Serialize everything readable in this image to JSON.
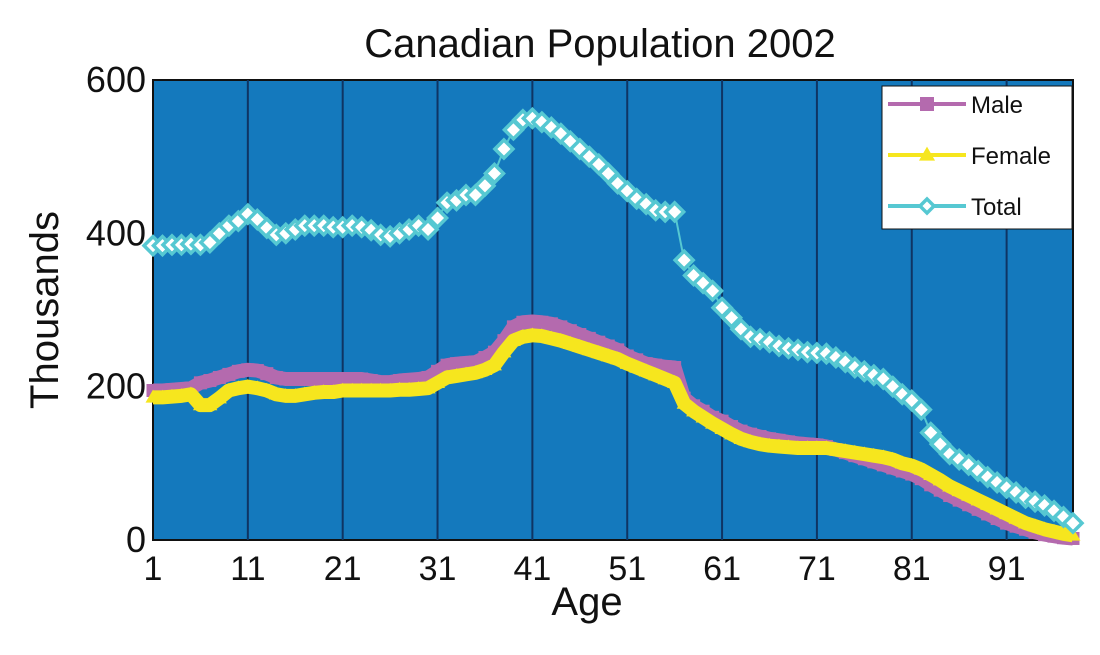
{
  "chart_data": {
    "type": "line",
    "title": "Canadian Population 2002",
    "xlabel": "Age",
    "ylabel": "Thousands",
    "xlim": [
      1,
      98
    ],
    "ylim": [
      0,
      600
    ],
    "xticks": [
      1,
      11,
      21,
      31,
      41,
      51,
      61,
      71,
      81,
      91
    ],
    "yticks": [
      0,
      200,
      400,
      600
    ],
    "grid": "vertical",
    "legend": "top-right",
    "colors": {
      "plot_background": "#1479bd",
      "grid": "#0f3463",
      "male": "#b46aae",
      "female": "#f6e61e",
      "total": "#56c8d2",
      "marker_fill": "#ffffff"
    },
    "x": [
      1,
      2,
      3,
      4,
      5,
      6,
      7,
      8,
      9,
      10,
      11,
      12,
      13,
      14,
      15,
      16,
      17,
      18,
      19,
      20,
      21,
      22,
      23,
      24,
      25,
      26,
      27,
      28,
      29,
      30,
      31,
      32,
      33,
      34,
      35,
      36,
      37,
      38,
      39,
      40,
      41,
      42,
      43,
      44,
      45,
      46,
      47,
      48,
      49,
      50,
      51,
      52,
      53,
      54,
      55,
      56,
      57,
      58,
      59,
      60,
      61,
      62,
      63,
      64,
      65,
      66,
      67,
      68,
      69,
      70,
      71,
      72,
      73,
      74,
      75,
      76,
      77,
      78,
      79,
      80,
      81,
      82,
      83,
      84,
      85,
      86,
      87,
      88,
      89,
      90,
      91,
      92,
      93,
      94,
      95,
      96,
      97,
      98
    ],
    "series": [
      {
        "name": "Male",
        "marker": "square",
        "values": [
          195,
          195,
          196,
          197,
          198,
          205,
          208,
          212,
          216,
          220,
          222,
          221,
          217,
          212,
          210,
          210,
          210,
          210,
          210,
          210,
          210,
          210,
          210,
          208,
          206,
          206,
          208,
          209,
          210,
          212,
          220,
          228,
          230,
          231,
          232,
          238,
          245,
          260,
          278,
          284,
          285,
          284,
          282,
          278,
          273,
          268,
          263,
          258,
          253,
          248,
          240,
          235,
          230,
          228,
          226,
          225,
          185,
          175,
          168,
          160,
          155,
          148,
          142,
          138,
          135,
          132,
          130,
          128,
          126,
          125,
          124,
          122,
          118,
          114,
          110,
          106,
          102,
          98,
          94,
          90,
          86,
          80,
          72,
          65,
          58,
          52,
          46,
          40,
          34,
          28,
          22,
          18,
          14,
          10,
          7,
          5,
          3,
          2
        ]
      },
      {
        "name": "Female",
        "marker": "triangle",
        "values": [
          186,
          186,
          187,
          188,
          190,
          176,
          176,
          185,
          195,
          198,
          200,
          198,
          195,
          190,
          188,
          188,
          190,
          192,
          193,
          193,
          195,
          195,
          195,
          195,
          195,
          195,
          196,
          196,
          197,
          198,
          205,
          212,
          214,
          216,
          218,
          222,
          228,
          245,
          260,
          265,
          267,
          266,
          263,
          260,
          256,
          252,
          248,
          244,
          240,
          236,
          230,
          225,
          220,
          215,
          210,
          205,
          178,
          168,
          160,
          152,
          145,
          138,
          132,
          128,
          125,
          123,
          122,
          121,
          120,
          120,
          120,
          120,
          118,
          116,
          114,
          112,
          110,
          108,
          105,
          100,
          97,
          92,
          85,
          78,
          70,
          64,
          58,
          52,
          46,
          40,
          34,
          28,
          22,
          18,
          14,
          11,
          8,
          6
        ]
      },
      {
        "name": "Total",
        "marker": "diamond",
        "values": [
          384,
          384,
          385,
          385,
          386,
          385,
          388,
          400,
          410,
          416,
          425,
          418,
          407,
          398,
          400,
          405,
          410,
          410,
          410,
          408,
          408,
          410,
          408,
          404,
          398,
          396,
          400,
          405,
          410,
          405,
          420,
          440,
          443,
          450,
          450,
          462,
          478,
          510,
          535,
          548,
          550,
          545,
          538,
          530,
          520,
          510,
          500,
          490,
          478,
          465,
          455,
          445,
          438,
          430,
          428,
          428,
          365,
          345,
          335,
          325,
          303,
          290,
          275,
          265,
          262,
          258,
          253,
          250,
          248,
          245,
          244,
          243,
          238,
          232,
          225,
          220,
          215,
          210,
          200,
          190,
          182,
          170,
          140,
          125,
          112,
          105,
          98,
          90,
          82,
          75,
          68,
          62,
          55,
          50,
          45,
          38,
          30,
          22
        ]
      }
    ]
  }
}
